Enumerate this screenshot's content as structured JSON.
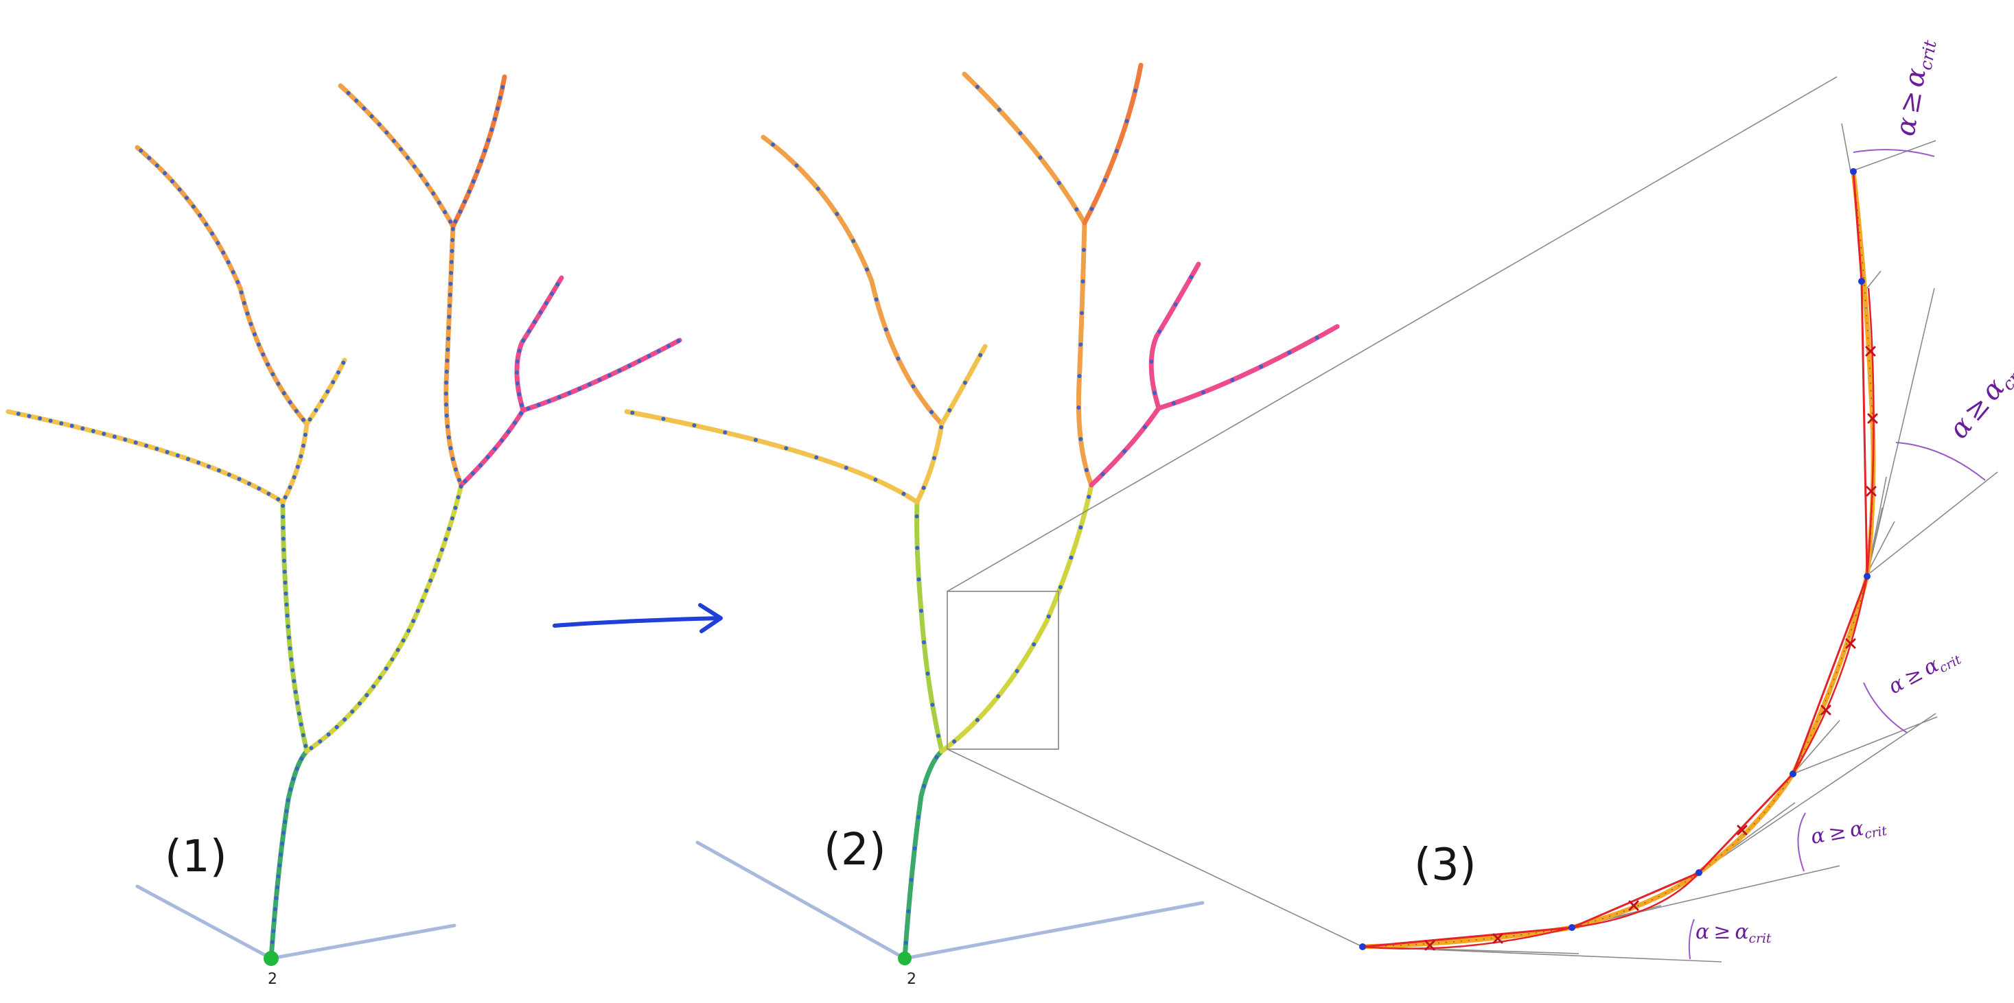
{
  "panels": [
    {
      "label": "(1)",
      "root_label": "2"
    },
    {
      "label": "(2)",
      "root_label": "2"
    },
    {
      "label": "(3)"
    }
  ],
  "angle_conditions": [
    {
      "alpha": "α",
      "op": "≥",
      "crit": "α",
      "sub": "crit"
    },
    {
      "alpha": "α",
      "op": "≥",
      "crit": "α",
      "sub": "crit"
    },
    {
      "alpha": "α",
      "op": "≥",
      "crit": "α",
      "sub": "crit"
    },
    {
      "alpha": "α",
      "op": "≥",
      "crit": "α",
      "sub": "crit"
    },
    {
      "alpha": "α",
      "op": "≥",
      "crit": "α",
      "sub": "crit"
    }
  ],
  "colors": {
    "trunk": "#3aa96a",
    "lower_branch": "#a8cf44",
    "right_lower": "#cfd43f",
    "left_upper": "#f2c24e",
    "mid_upper": "#f0a048",
    "top_right": "#f07a3e",
    "pink_branch": "#ec4c8c",
    "node_dot": "#3a64c8",
    "arrow": "#1f3fd8",
    "ground": "#a9b8dd",
    "root_node": "#1fb83d",
    "polyline_fit": "#e4222a",
    "curve": "#f5a623",
    "construction": "#8a8a8a",
    "condition_text": "#6a1d9a",
    "zoom_box": "#9a9a9a"
  }
}
